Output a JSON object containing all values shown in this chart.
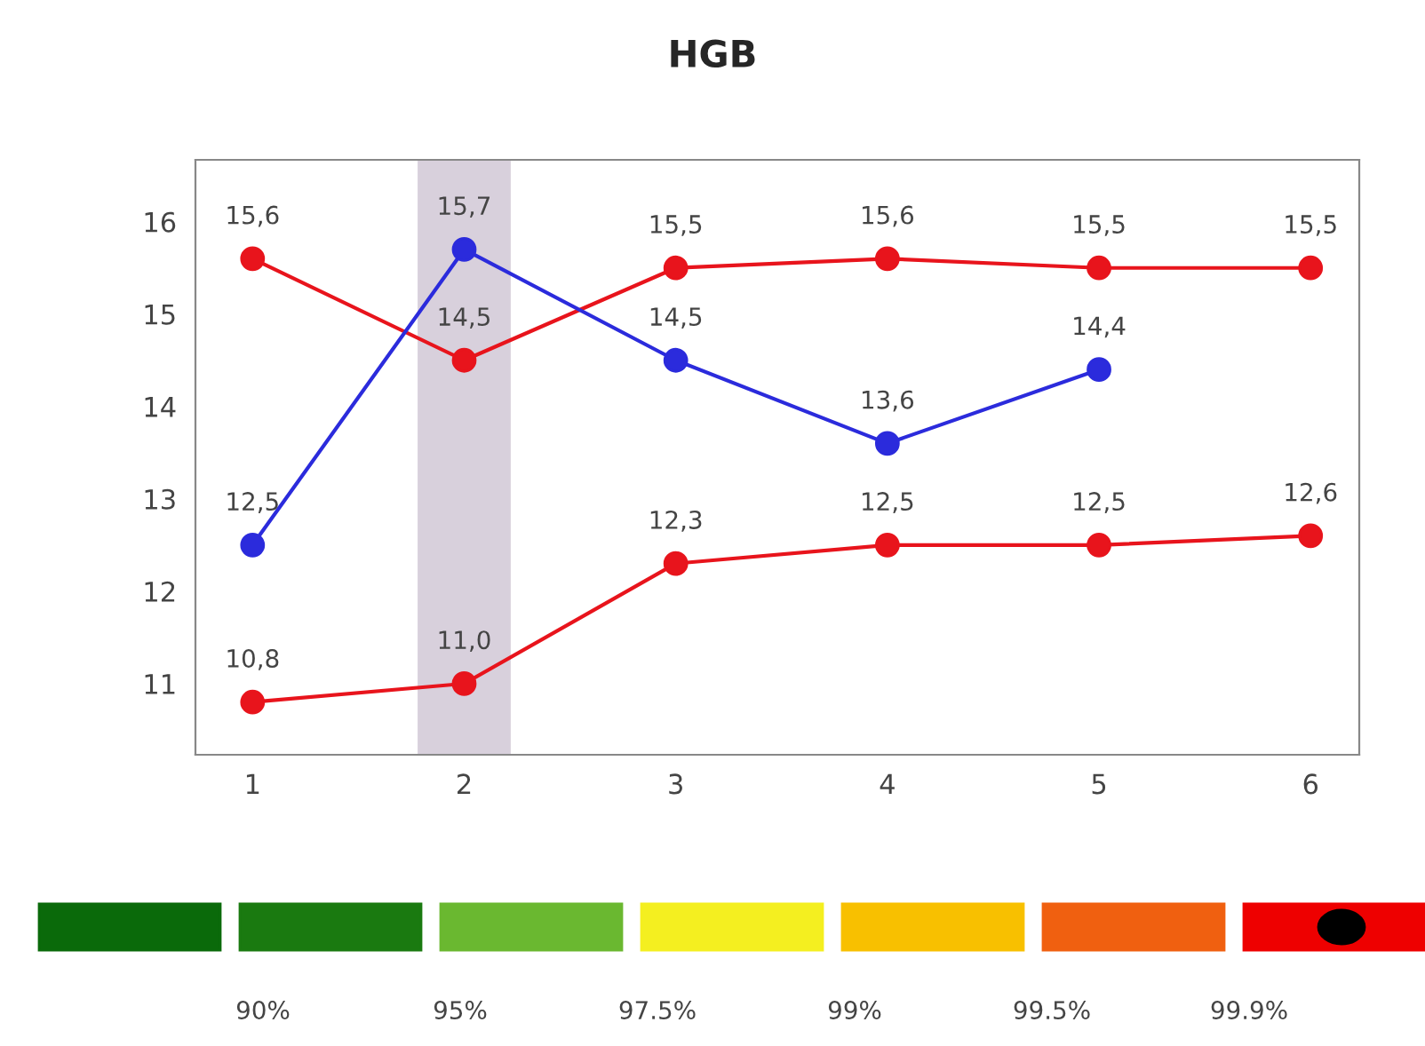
{
  "chart_data": {
    "type": "line",
    "title": "HGB",
    "x": [
      1,
      2,
      3,
      4,
      5,
      6
    ],
    "series": [
      {
        "color": "#e8141c",
        "values": [
          15.6,
          14.5,
          15.5,
          15.6,
          15.5,
          15.5
        ],
        "value_labels": [
          "15,6",
          "14,5",
          "15,5",
          "15,6",
          "15,5",
          "15,5"
        ]
      },
      {
        "color": "#e8141c",
        "values": [
          10.8,
          11.0,
          12.3,
          12.5,
          12.5,
          12.6
        ],
        "value_labels": [
          "10,8",
          "11,0",
          "12,3",
          "12,5",
          "12,5",
          "12,6"
        ]
      },
      {
        "color": "#2b2bdc",
        "values": [
          12.5,
          15.7,
          14.5,
          13.6,
          14.4,
          null
        ],
        "value_labels": [
          "12,5",
          "15,7",
          "14,5",
          "13,6",
          "14,4",
          null
        ]
      }
    ],
    "xlim": [
      0.73,
      6.23
    ],
    "xticks": [
      1,
      2,
      3,
      4,
      5,
      6
    ],
    "ylim": [
      10.23,
      16.67
    ],
    "yticks": [
      11,
      12,
      13,
      14,
      15,
      16
    ],
    "bands": [
      {
        "axis": "x",
        "from": 1.78,
        "to": 2.22,
        "color": "#d8d0dc"
      }
    ],
    "marker": "circle",
    "line_style": "solid",
    "grid": false,
    "legend": false,
    "annotations": [
      "90%",
      "95%",
      "97.5%",
      "99%",
      "99.5%",
      "99.9%"
    ]
  }
}
